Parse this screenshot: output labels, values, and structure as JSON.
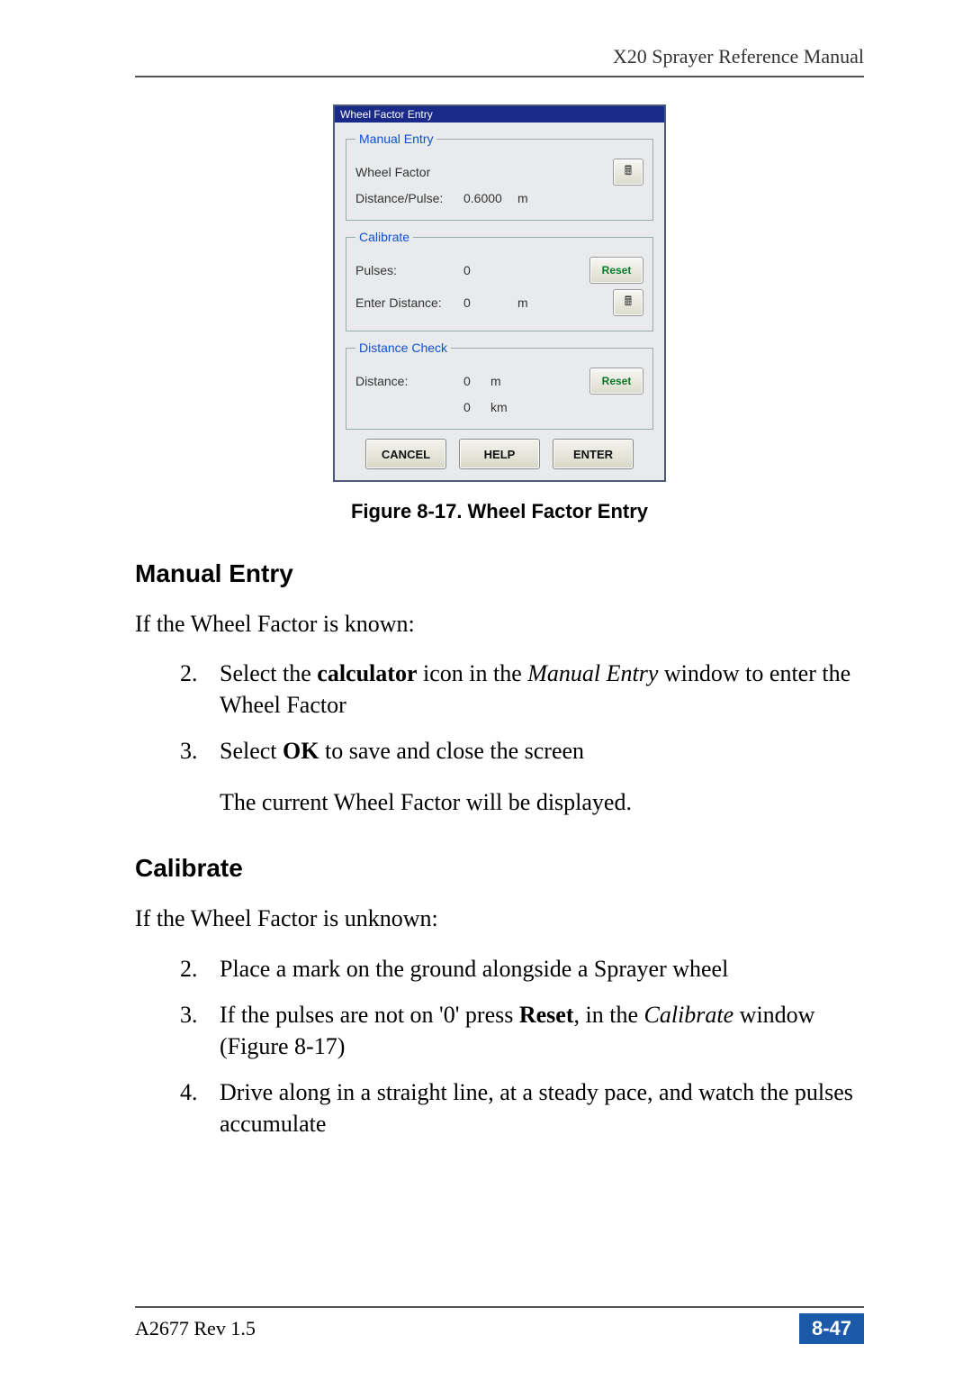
{
  "header": {
    "title": "X20 Sprayer Reference Manual"
  },
  "dialog": {
    "titlebar": "Wheel Factor Entry",
    "groups": {
      "manual": {
        "legend": "Manual Entry",
        "wheel_factor_label": "Wheel Factor",
        "dp_label": "Distance/Pulse:",
        "dp_value": "0.6000",
        "dp_unit": "m",
        "calc_icon": "🖩"
      },
      "calibrate": {
        "legend": "Calibrate",
        "pulses_label": "Pulses:",
        "pulses_value": "0",
        "reset_label": "Reset",
        "enter_dist_label": "Enter Distance:",
        "enter_dist_value": "0",
        "enter_dist_unit": "m",
        "calc_icon": "🖩"
      },
      "distcheck": {
        "legend": "Distance Check",
        "distance_label": "Distance:",
        "distance_m_value": "0",
        "distance_m_unit": "m",
        "distance_km_value": "0",
        "distance_km_unit": "km",
        "reset_label": "Reset"
      }
    },
    "footer": {
      "cancel": "CANCEL",
      "help": "HELP",
      "enter": "ENTER"
    }
  },
  "caption": "Figure 8-17. Wheel Factor Entry",
  "sections": {
    "manual_entry": {
      "heading": "Manual Entry",
      "intro": "If the Wheel Factor is known:",
      "steps": [
        {
          "n": "2.",
          "pre": "Select the ",
          "b1": "calculator",
          "mid": " icon in the ",
          "i1": "Manual Entry",
          "post": " window to enter the Wheel Factor"
        },
        {
          "n": "3.",
          "pre": "Select ",
          "b1": "OK",
          "mid": " to save and close the screen",
          "i1": "",
          "post": ""
        }
      ],
      "note": "The current Wheel Factor will be displayed."
    },
    "calibrate": {
      "heading": "Calibrate",
      "intro": "If the Wheel Factor is unknown:",
      "steps": [
        {
          "n": "2.",
          "txt": "Place a mark on the ground alongside a Sprayer wheel"
        },
        {
          "n": "3.",
          "pre": "If the pulses are not on '0' press ",
          "b1": "Reset",
          "mid": ", in the ",
          "i1": "Calibrate",
          "post": " window (Figure 8-17)"
        },
        {
          "n": "4.",
          "txt": "Drive along in a straight line, at a steady pace, and watch the pulses accumulate"
        }
      ]
    }
  },
  "page_footer": {
    "left": "A2677 Rev 1.5",
    "right": "8-47"
  },
  "colors": {
    "rule": "#555555",
    "blue_badge": "#1a5aa8",
    "dialog_border": "#4a5a7a",
    "dialog_titlebar": "#1a2a88",
    "legend_blue": "#1050d0",
    "btn_green_text": "#0a7a2a"
  }
}
